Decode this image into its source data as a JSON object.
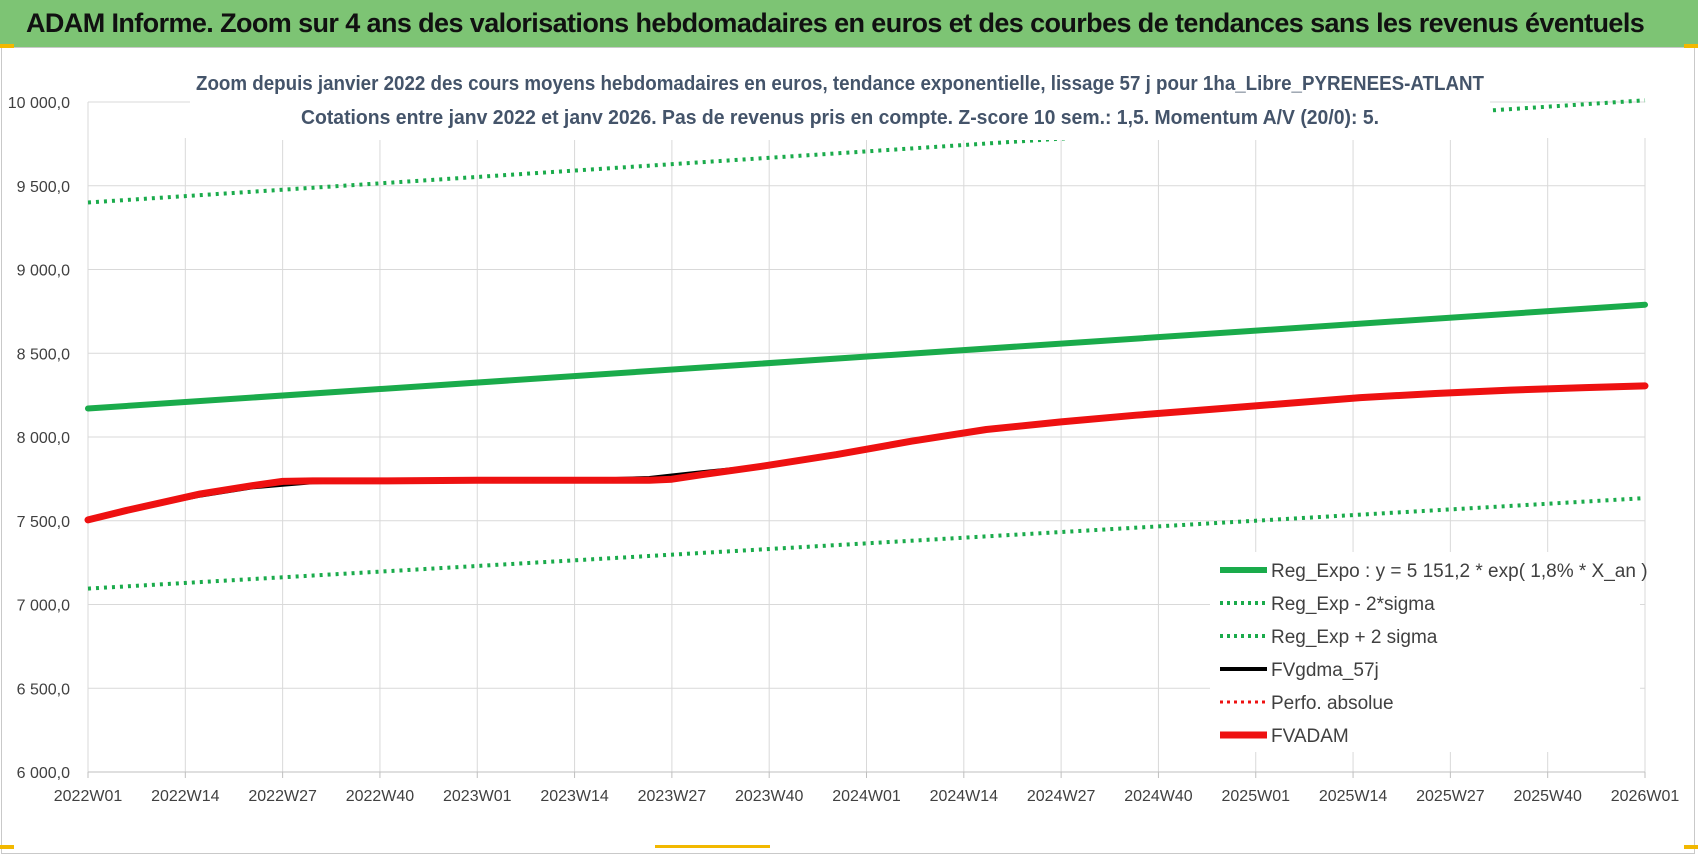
{
  "banner": {
    "title": "ADAM Informe. Zoom sur 4 ans des valorisations hebdomadaires en euros et des courbes de tendances sans les revenus éventuels"
  },
  "colors": {
    "banner_bg": "#7dc474",
    "trend_green": "#1aab4b",
    "dotted_green": "#1aab4b",
    "black": "#000000",
    "red": "#ee1111",
    "grid": "#d9d9d9"
  },
  "chart_data": {
    "type": "line",
    "title_line1": "Zoom depuis janvier 2022 des cours moyens hebdomadaires en euros, tendance exponentielle, lissage 57 j pour 1ha_Libre_PYRENEES-ATLANT",
    "title_line2": "Cotations entre janv 2022 et janv 2026. Pas de revenus pris en compte. Z-score 10 sem.: 1,5. Momentum A/V (20/0): 5.",
    "xlabel": "",
    "ylabel": "",
    "ylim": [
      6000,
      10000
    ],
    "yticks": [
      6000,
      6500,
      7000,
      7500,
      8000,
      8500,
      9000,
      9500,
      10000
    ],
    "ytick_labels": [
      "6 000,0",
      "6 500,0",
      "7 000,0",
      "7 500,0",
      "8 000,0",
      "8 500,0",
      "9 000,0",
      "9 500,0",
      "10 000,0"
    ],
    "xlim": [
      0,
      208
    ],
    "x_tick_positions": [
      0,
      13,
      26,
      39,
      52,
      65,
      78,
      91,
      104,
      117,
      130,
      143,
      156,
      169,
      182,
      195,
      208
    ],
    "x_tick_labels": [
      "2022W01",
      "2022W14",
      "2022W27",
      "2022W40",
      "2023W01",
      "2023W14",
      "2023W27",
      "2023W40",
      "2024W01",
      "2024W14",
      "2024W27",
      "2024W40",
      "2025W01",
      "2025W14",
      "2025W27",
      "2025W40",
      "2026W01"
    ],
    "grid": true,
    "legend_position": "bottom-right",
    "series": [
      {
        "name": "Reg_Expo : y = 5 151,2 * exp( 1,8% *  X_an )",
        "style": "solid-thick",
        "color": "#1aab4b",
        "x": [
          0,
          208
        ],
        "y": [
          8170,
          8790
        ]
      },
      {
        "name": "Reg_Exp - 2*sigma",
        "style": "dotted",
        "color": "#1aab4b",
        "x": [
          0,
          208
        ],
        "y": [
          7095,
          7635
        ]
      },
      {
        "name": "Reg_Exp + 2 sigma",
        "style": "dotted",
        "color": "#1aab4b",
        "x": [
          0,
          208
        ],
        "y": [
          9400,
          10010
        ]
      },
      {
        "name": "FVgdma_57j",
        "style": "solid",
        "color": "#000000",
        "x": [
          0,
          5,
          10,
          15,
          22,
          26,
          30,
          35,
          40,
          52,
          65,
          75,
          78,
          82,
          90,
          100,
          110,
          120,
          130,
          140,
          150,
          160,
          170,
          180,
          190,
          200,
          208
        ],
        "y": [
          7505,
          7560,
          7605,
          7650,
          7700,
          7715,
          7730,
          7735,
          7735,
          7742,
          7742,
          7755,
          7770,
          7790,
          7825,
          7895,
          7975,
          8045,
          8090,
          8130,
          8165,
          8200,
          8235,
          8260,
          8280,
          8295,
          8305
        ]
      },
      {
        "name": "Perfo. absolue",
        "style": "dotted",
        "color": "#ee1111",
        "x": [
          0,
          5,
          10,
          15,
          22,
          26,
          30,
          35,
          40,
          52,
          65,
          75,
          78,
          82,
          90,
          100,
          110,
          120,
          130,
          140,
          150,
          160,
          170,
          180,
          190,
          200,
          208
        ],
        "y": [
          7505,
          7560,
          7610,
          7660,
          7710,
          7735,
          7738,
          7738,
          7738,
          7742,
          7742,
          7742,
          7748,
          7775,
          7825,
          7895,
          7975,
          8045,
          8090,
          8130,
          8165,
          8200,
          8235,
          8260,
          8280,
          8295,
          8305
        ]
      },
      {
        "name": "FVADAM",
        "style": "solid-thick",
        "color": "#ee1111",
        "x": [
          0,
          5,
          10,
          15,
          22,
          26,
          30,
          35,
          40,
          52,
          65,
          75,
          78,
          82,
          90,
          100,
          110,
          120,
          130,
          140,
          150,
          160,
          170,
          180,
          190,
          200,
          208
        ],
        "y": [
          7505,
          7560,
          7610,
          7660,
          7710,
          7735,
          7738,
          7738,
          7738,
          7742,
          7742,
          7742,
          7748,
          7775,
          7825,
          7895,
          7975,
          8045,
          8090,
          8130,
          8165,
          8200,
          8235,
          8260,
          8280,
          8295,
          8305
        ]
      }
    ]
  }
}
